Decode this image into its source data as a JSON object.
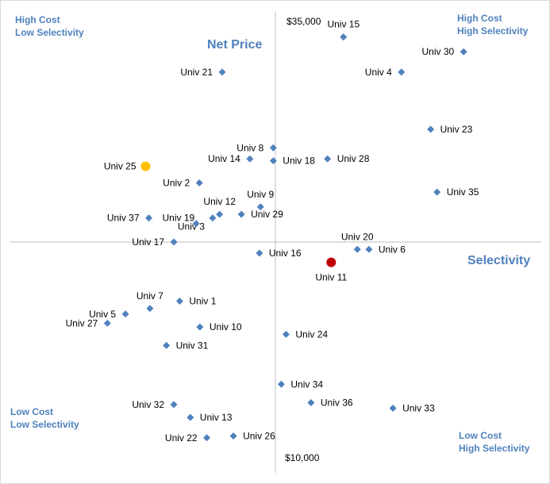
{
  "corners": {
    "top_left": [
      "High Cost",
      "Low Selectivity"
    ],
    "top_right": [
      "High Cost",
      "High Selectivity"
    ],
    "bottom_left": [
      "Low Cost",
      "Low Selectivity"
    ],
    "bottom_right": [
      "Low Cost",
      "High Selectivity"
    ]
  },
  "colors": {
    "marker": "#4f81bd",
    "highlight_yellow": "#ffc000",
    "highlight_red": "#c00000",
    "axis": "#bfbfbf",
    "label_accent": "#4f81bd"
  },
  "chart_data": {
    "type": "scatter",
    "title": "",
    "xlabel": "Selectivity",
    "ylabel": "Net Price",
    "y_top_label": "$35,000",
    "y_bottom_label": "$10,000",
    "xlim": [
      0,
      100
    ],
    "ylim": [
      10000,
      35000
    ],
    "grid": false,
    "points": [
      {
        "label": "Univ 1",
        "x": 32,
        "y": 19300,
        "marker": "diamond",
        "label_pos": "right"
      },
      {
        "label": "Univ 2",
        "x": 35.7,
        "y": 25700,
        "marker": "diamond",
        "label_pos": "left"
      },
      {
        "label": "Univ 3",
        "x": 38.2,
        "y": 23800,
        "marker": "diamond",
        "label_pos": "below-left"
      },
      {
        "label": "Univ 4",
        "x": 73.7,
        "y": 31700,
        "marker": "diamond",
        "label_pos": "left"
      },
      {
        "label": "Univ 5",
        "x": 21.8,
        "y": 18600,
        "marker": "diamond",
        "label_pos": "left"
      },
      {
        "label": "Univ 6",
        "x": 67.6,
        "y": 22100,
        "marker": "diamond",
        "label_pos": "right"
      },
      {
        "label": "Univ 7",
        "x": 26.4,
        "y": 18900,
        "marker": "diamond",
        "label_pos": "above"
      },
      {
        "label": "Univ 8",
        "x": 49.6,
        "y": 27600,
        "marker": "diamond",
        "label_pos": "left"
      },
      {
        "label": "Univ 9",
        "x": 47.2,
        "y": 24400,
        "marker": "diamond",
        "label_pos": "above"
      },
      {
        "label": "Univ 10",
        "x": 35.8,
        "y": 17900,
        "marker": "diamond",
        "label_pos": "right"
      },
      {
        "label": "Univ 11",
        "x": 60.5,
        "y": 21400,
        "marker": "circle",
        "color": "red",
        "label_pos": "below"
      },
      {
        "label": "Univ 12",
        "x": 39.5,
        "y": 24000,
        "marker": "diamond",
        "label_pos": "above"
      },
      {
        "label": "Univ 13",
        "x": 34,
        "y": 13000,
        "marker": "diamond",
        "label_pos": "right"
      },
      {
        "label": "Univ 14",
        "x": 45.2,
        "y": 27000,
        "marker": "diamond",
        "label_pos": "left"
      },
      {
        "label": "Univ 15",
        "x": 62.8,
        "y": 33600,
        "marker": "diamond",
        "label_pos": "above"
      },
      {
        "label": "Univ 16",
        "x": 47,
        "y": 21900,
        "marker": "diamond",
        "label_pos": "right"
      },
      {
        "label": "Univ 17",
        "x": 30.9,
        "y": 22500,
        "marker": "diamond",
        "label_pos": "left"
      },
      {
        "label": "Univ 18",
        "x": 49.6,
        "y": 26900,
        "marker": "diamond",
        "label_pos": "right"
      },
      {
        "label": "Univ 19",
        "x": 35.1,
        "y": 23500,
        "marker": "diamond",
        "label_pos": "above-left"
      },
      {
        "label": "Univ 20",
        "x": 65.4,
        "y": 22100,
        "marker": "diamond",
        "label_pos": "above"
      },
      {
        "label": "Univ 21",
        "x": 40,
        "y": 31700,
        "marker": "diamond",
        "label_pos": "left"
      },
      {
        "label": "Univ 22",
        "x": 37.1,
        "y": 11900,
        "marker": "diamond",
        "label_pos": "left"
      },
      {
        "label": "Univ 23",
        "x": 79.2,
        "y": 28600,
        "marker": "diamond",
        "label_pos": "right"
      },
      {
        "label": "Univ 24",
        "x": 52,
        "y": 17500,
        "marker": "diamond",
        "label_pos": "right"
      },
      {
        "label": "Univ 25",
        "x": 25.6,
        "y": 26600,
        "marker": "circle",
        "color": "yellow",
        "label_pos": "left"
      },
      {
        "label": "Univ 26",
        "x": 42.1,
        "y": 12000,
        "marker": "diamond",
        "label_pos": "right"
      },
      {
        "label": "Univ 27",
        "x": 18.4,
        "y": 18100,
        "marker": "diamond",
        "label_pos": "left"
      },
      {
        "label": "Univ 28",
        "x": 59.8,
        "y": 27000,
        "marker": "diamond",
        "label_pos": "right"
      },
      {
        "label": "Univ 29",
        "x": 43.6,
        "y": 24000,
        "marker": "diamond",
        "label_pos": "right"
      },
      {
        "label": "Univ 30",
        "x": 85.4,
        "y": 32800,
        "marker": "diamond",
        "label_pos": "left"
      },
      {
        "label": "Univ 31",
        "x": 29.5,
        "y": 16900,
        "marker": "diamond",
        "label_pos": "right"
      },
      {
        "label": "Univ 32",
        "x": 30.9,
        "y": 13700,
        "marker": "diamond",
        "label_pos": "left"
      },
      {
        "label": "Univ 33",
        "x": 72.1,
        "y": 13500,
        "marker": "diamond",
        "label_pos": "right"
      },
      {
        "label": "Univ 34",
        "x": 51.1,
        "y": 14800,
        "marker": "diamond",
        "label_pos": "right"
      },
      {
        "label": "Univ 35",
        "x": 80.4,
        "y": 25200,
        "marker": "diamond",
        "label_pos": "right"
      },
      {
        "label": "Univ 36",
        "x": 56.7,
        "y": 13800,
        "marker": "diamond",
        "label_pos": "right"
      },
      {
        "label": "Univ 37",
        "x": 26.2,
        "y": 23800,
        "marker": "diamond",
        "label_pos": "left"
      }
    ]
  }
}
